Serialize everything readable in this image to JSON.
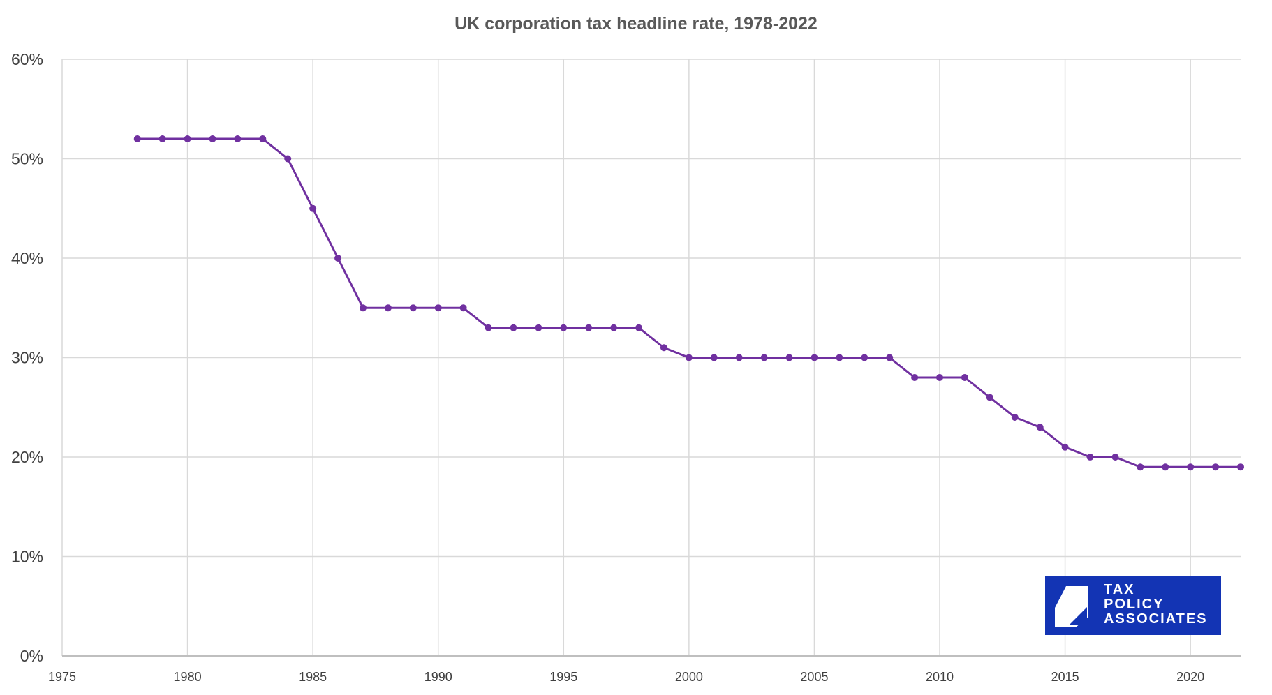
{
  "chart_data": {
    "type": "line",
    "title": "UK corporation tax headline rate, 1978-2022",
    "xlabel": "",
    "ylabel": "",
    "xlim": [
      1975,
      2022
    ],
    "ylim": [
      0,
      60
    ],
    "x_ticks": [
      "1975",
      "1980",
      "1985",
      "1990",
      "1995",
      "2000",
      "2005",
      "2010",
      "2015",
      "2020"
    ],
    "y_ticks": [
      "0%",
      "10%",
      "20%",
      "30%",
      "40%",
      "50%",
      "60%"
    ],
    "grid": true,
    "legend": "none",
    "color": "#7030a0",
    "x": [
      1978,
      1979,
      1980,
      1981,
      1982,
      1983,
      1984,
      1985,
      1986,
      1987,
      1988,
      1989,
      1990,
      1991,
      1992,
      1993,
      1994,
      1995,
      1996,
      1997,
      1998,
      1999,
      2000,
      2001,
      2002,
      2003,
      2004,
      2005,
      2006,
      2007,
      2008,
      2009,
      2010,
      2011,
      2012,
      2013,
      2014,
      2015,
      2016,
      2017,
      2018,
      2019,
      2020,
      2021,
      2022
    ],
    "values": [
      52,
      52,
      52,
      52,
      52,
      52,
      50,
      45,
      40,
      35,
      35,
      35,
      35,
      35,
      33,
      33,
      33,
      33,
      33,
      33,
      33,
      31,
      30,
      30,
      30,
      30,
      30,
      30,
      30,
      30,
      30,
      28,
      28,
      28,
      26,
      24,
      23,
      21,
      20,
      20,
      19,
      19,
      19,
      19,
      19
    ]
  },
  "logo": {
    "text": [
      "TAX",
      "POLICY",
      "ASSOCIATES"
    ],
    "color": "#1334b4"
  }
}
